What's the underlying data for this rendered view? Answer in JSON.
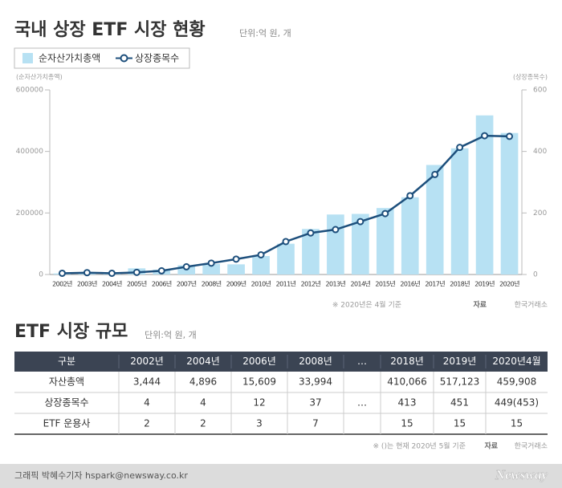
{
  "header": {
    "title": "국내 상장 ETF 시장 현황",
    "unit": "단위:억 원, 개"
  },
  "chart_data": {
    "type": "bar-line",
    "y_label": "(순자산가치총액)",
    "y2_label": "(상장종목수)",
    "categories": [
      "2002년",
      "2003년",
      "2004년",
      "2005년",
      "2006년",
      "2007년",
      "2008년",
      "2009년",
      "2010년",
      "2011년",
      "2012년",
      "2013년",
      "2014년",
      "2015년",
      "2016년",
      "2017년",
      "2018년",
      "2019년",
      "2020년"
    ],
    "series": [
      {
        "name": "순자산가치총액",
        "type": "bar",
        "color": "#b7e1f3",
        "values": [
          3444,
          5000,
          4896,
          20000,
          15609,
          30000,
          33994,
          33000,
          60000,
          100000,
          148000,
          195000,
          197000,
          216000,
          251000,
          356000,
          410066,
          517123,
          459908
        ]
      },
      {
        "name": "상장종목수",
        "type": "line",
        "axis": "y2",
        "color": "#1d4f7c",
        "values": [
          4,
          6,
          4,
          7,
          12,
          25,
          37,
          50,
          64,
          107,
          135,
          146,
          172,
          198,
          256,
          325,
          413,
          451,
          449
        ]
      }
    ],
    "ylim": [
      0,
      600000
    ],
    "yticks": [
      0,
      200000,
      400000,
      600000
    ],
    "y2lim": [
      0,
      600
    ],
    "y2ticks": [
      0,
      200,
      400,
      600
    ],
    "grid": false
  },
  "chart_note": {
    "text": "※ 2020년은 4월 기준",
    "source_label": "자료",
    "source": "한국거래소"
  },
  "table_header": {
    "title": "ETF 시장 규모",
    "unit": "단위:억 원, 개"
  },
  "table": {
    "header": [
      "구분",
      "2002년",
      "2004년",
      "2006년",
      "2008년",
      "…",
      "2018년",
      "2019년",
      "2020년4월"
    ],
    "gap": "…",
    "rows": [
      [
        "자산총액",
        "3,444",
        "4,896",
        "15,609",
        "33,994",
        "410,066",
        "517,123",
        "459,908"
      ],
      [
        "상장종목수",
        "4",
        "4",
        "12",
        "37",
        "413",
        "451",
        "449(453)"
      ],
      [
        "ETF 운용사",
        "2",
        "2",
        "3",
        "7",
        "15",
        "15",
        "15"
      ]
    ]
  },
  "table_note": {
    "text": "※ ()는 현재 2020년 5월 기준",
    "source_label": "자료",
    "source": "한국거래소"
  },
  "footer": {
    "credit": "그래픽 박혜수기자 hspark@newsway.co.kr",
    "logo": "Newsway"
  }
}
